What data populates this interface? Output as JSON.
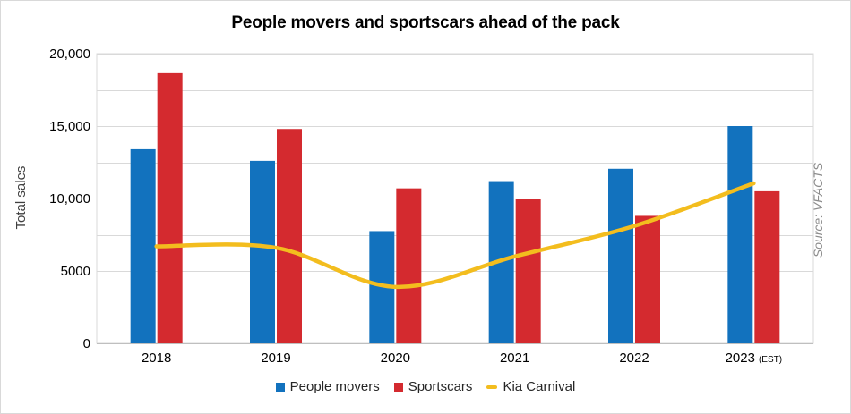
{
  "source_note": "Source: VFACTS",
  "chart_data": {
    "type": "bar",
    "title": "People movers and sportscars ahead of the pack",
    "xlabel": "",
    "ylabel": "Total sales",
    "categories": [
      "2018",
      "2019",
      "2020",
      "2021",
      "2022",
      "2023"
    ],
    "category_suffix": {
      "5": "(EST)"
    },
    "ylim": [
      0,
      20000
    ],
    "yticks": [
      {
        "value": 0,
        "label": "0"
      },
      {
        "value": 5000,
        "label": "5000"
      },
      {
        "value": 10000,
        "label": "10,000"
      },
      {
        "value": 15000,
        "label": "15,000"
      },
      {
        "value": 20000,
        "label": "20,000"
      }
    ],
    "grid": true,
    "legend_position": "bottom",
    "series": [
      {
        "name": "People movers",
        "type": "bar",
        "color": "#1272be",
        "values": [
          13400,
          12600,
          7750,
          11200,
          12050,
          15000
        ]
      },
      {
        "name": "Sportscars",
        "type": "bar",
        "color": "#d42a2f",
        "values": [
          18650,
          14800,
          10700,
          10000,
          8800,
          10500
        ]
      },
      {
        "name": "Kia Carnival",
        "type": "line",
        "color": "#f3bd1e",
        "values": [
          6700,
          6600,
          3900,
          6000,
          8100,
          11050
        ]
      }
    ]
  }
}
